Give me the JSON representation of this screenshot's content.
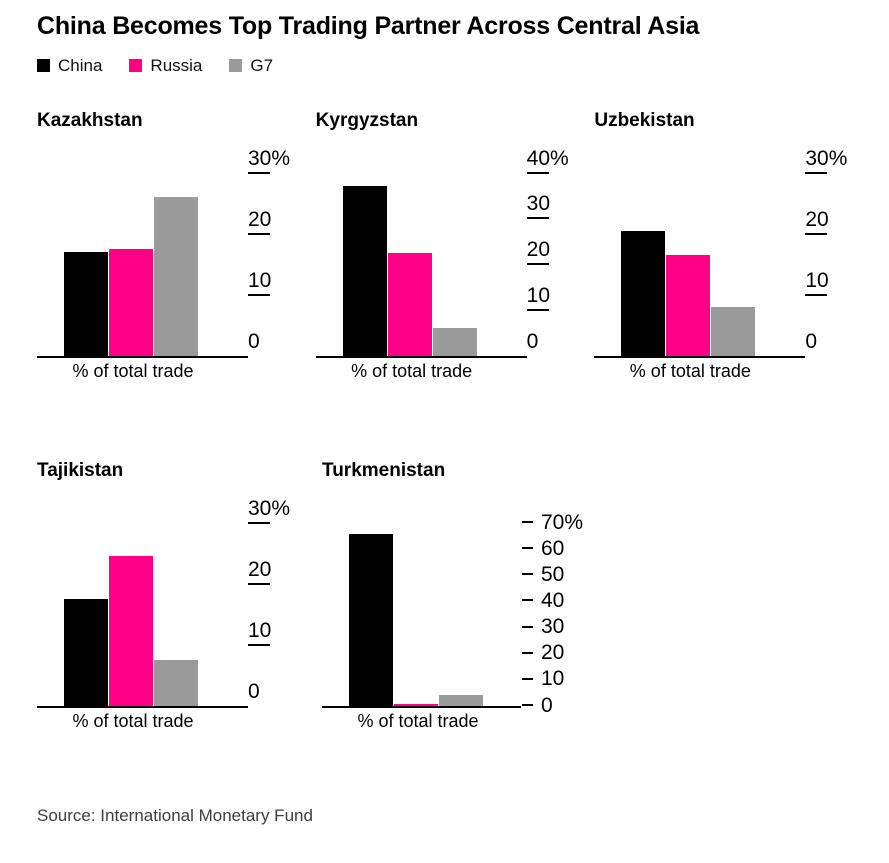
{
  "header": {
    "title": "China Becomes Top Trading Partner Across Central Asia"
  },
  "chart_data": {
    "type": "bar",
    "title": "China Becomes Top Trading Partner Across Central Asia",
    "legend_position": "top-left",
    "grid": false,
    "series": [
      {
        "name": "China",
        "color": "#000000"
      },
      {
        "name": "Russia",
        "color": "#ff0087"
      },
      {
        "name": "G7",
        "color": "#9a9a9a"
      }
    ],
    "charts": [
      {
        "country": "Kazakhstan",
        "xlabel": "% of total trade",
        "ylim": [
          0,
          30
        ],
        "ticks": [
          0,
          10,
          20,
          30
        ],
        "tick_labels": [
          "0",
          "10",
          "20",
          "30%"
        ],
        "tick_style": "underline",
        "values": [
          17,
          17.5,
          26
        ]
      },
      {
        "country": "Kyrgyzstan",
        "xlabel": "% of total trade",
        "ylim": [
          0,
          40
        ],
        "ticks": [
          0,
          10,
          20,
          30,
          40
        ],
        "tick_labels": [
          "0",
          "10",
          "20",
          "30",
          "40%"
        ],
        "tick_style": "underline",
        "values": [
          37,
          22.5,
          6
        ]
      },
      {
        "country": "Uzbekistan",
        "xlabel": "% of total trade",
        "ylim": [
          0,
          30
        ],
        "ticks": [
          0,
          10,
          20,
          30
        ],
        "tick_labels": [
          "0",
          "10",
          "20",
          "30%"
        ],
        "tick_style": "underline",
        "values": [
          20.5,
          16.5,
          8
        ]
      },
      {
        "country": "Tajikistan",
        "xlabel": "% of total trade",
        "ylim": [
          0,
          30
        ],
        "ticks": [
          0,
          10,
          20,
          30
        ],
        "tick_labels": [
          "0",
          "10",
          "20",
          "30%"
        ],
        "tick_style": "underline",
        "values": [
          17.5,
          24.5,
          7.5
        ]
      },
      {
        "country": "Turkmenistan",
        "xlabel": "% of total trade",
        "ylim": [
          0,
          70
        ],
        "ticks": [
          0,
          10,
          20,
          30,
          40,
          50,
          60,
          70
        ],
        "tick_labels": [
          "0",
          "10",
          "20",
          "30",
          "40",
          "50",
          "60",
          "70%"
        ],
        "tick_style": "dash-left",
        "values": [
          65.5,
          0.5,
          4
        ]
      }
    ]
  },
  "footer": {
    "source": "Source: International Monetary Fund"
  }
}
